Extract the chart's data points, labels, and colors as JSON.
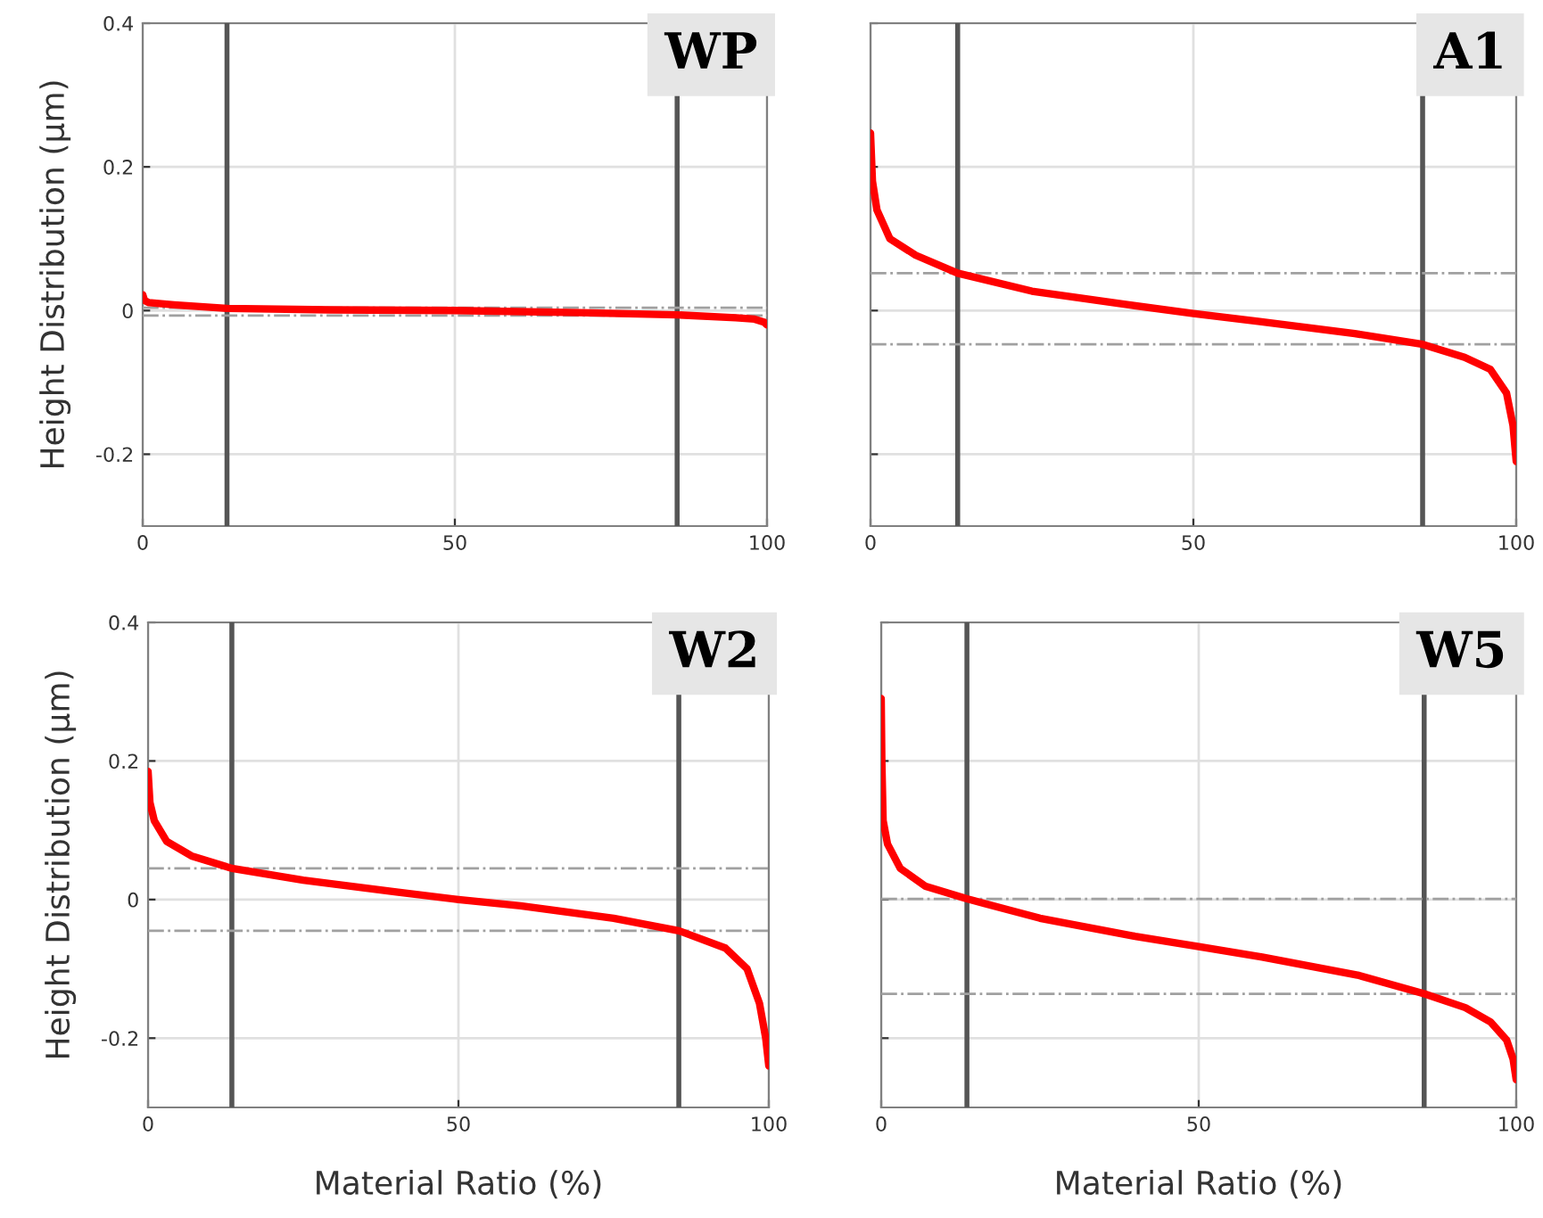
{
  "chart_data": [
    {
      "type": "line",
      "title": "WP",
      "ylabel": "Height Distribution (μm)",
      "xlim": [
        0,
        100
      ],
      "xticks": [
        0,
        50,
        100
      ],
      "ylim": [
        -0.3,
        0.4
      ],
      "yticks": [
        -0.2,
        0,
        0.2,
        0.4
      ],
      "grid": true,
      "series": [
        {
          "color": "#ff0000",
          "x": [
            0,
            0.3,
            1,
            5,
            13.5,
            30,
            50,
            70,
            85.6,
            95,
            98,
            99.5,
            100
          ],
          "values": [
            0.022,
            0.014,
            0.011,
            0.008,
            0.003,
            0.001,
            0,
            -0.003,
            -0.006,
            -0.01,
            -0.012,
            -0.016,
            -0.02
          ]
        }
      ],
      "ref_lines": [
        {
          "axis": "x",
          "value": 13.5,
          "color": "#555555",
          "line_style": "solid"
        },
        {
          "axis": "x",
          "value": 85.6,
          "color": "#555555",
          "line_style": "solid"
        },
        {
          "axis": "y",
          "value": 0.004,
          "color": "#a0a0a0",
          "line_style": "dashdot"
        },
        {
          "axis": "y",
          "value": -0.007,
          "color": "#a0a0a0",
          "line_style": "dashdot"
        }
      ]
    },
    {
      "type": "line",
      "title": "A1",
      "xlim": [
        0,
        100
      ],
      "xticks": [
        0,
        50,
        100
      ],
      "ylim": [
        -0.3,
        0.4
      ],
      "yticks": [
        -0.2,
        0,
        0.2,
        0.4
      ],
      "grid": true,
      "tick_labels": "x",
      "series": [
        {
          "color": "#ff0000",
          "x": [
            0,
            0.3,
            1,
            3,
            7,
            13.5,
            25,
            40,
            50,
            60,
            75,
            85.5,
            92,
            96,
            98.5,
            99.5,
            100
          ],
          "values": [
            0.247,
            0.18,
            0.14,
            0.1,
            0.077,
            0.052,
            0.027,
            0.008,
            -0.004,
            -0.015,
            -0.032,
            -0.047,
            -0.065,
            -0.082,
            -0.115,
            -0.16,
            -0.21
          ]
        }
      ],
      "ref_lines": [
        {
          "axis": "x",
          "value": 13.5,
          "color": "#555555",
          "line_style": "solid"
        },
        {
          "axis": "x",
          "value": 85.5,
          "color": "#555555",
          "line_style": "solid"
        },
        {
          "axis": "y",
          "value": 0.052,
          "color": "#a0a0a0",
          "line_style": "dashdot"
        },
        {
          "axis": "y",
          "value": -0.047,
          "color": "#a0a0a0",
          "line_style": "dashdot"
        }
      ]
    },
    {
      "type": "line",
      "title": "W2",
      "ylabel": "Height Distribution (μm)",
      "xlabel": "Material Ratio (%)",
      "xlim": [
        0,
        100
      ],
      "xticks": [
        0,
        50,
        100
      ],
      "ylim": [
        -0.3,
        0.4
      ],
      "yticks": [
        -0.2,
        0,
        0.2,
        0.4
      ],
      "grid": true,
      "series": [
        {
          "color": "#ff0000",
          "x": [
            0,
            0.3,
            1,
            3,
            7,
            13.5,
            25,
            40,
            50,
            60,
            75,
            85.5,
            93,
            96.5,
            98.5,
            99.5,
            100
          ],
          "values": [
            0.185,
            0.14,
            0.114,
            0.084,
            0.063,
            0.045,
            0.028,
            0.011,
            0,
            -0.009,
            -0.027,
            -0.045,
            -0.07,
            -0.1,
            -0.15,
            -0.2,
            -0.24
          ]
        }
      ],
      "ref_lines": [
        {
          "axis": "x",
          "value": 13.5,
          "color": "#555555",
          "line_style": "solid"
        },
        {
          "axis": "x",
          "value": 85.5,
          "color": "#555555",
          "line_style": "solid"
        },
        {
          "axis": "y",
          "value": 0.045,
          "color": "#a0a0a0",
          "line_style": "dashdot"
        },
        {
          "axis": "y",
          "value": -0.045,
          "color": "#a0a0a0",
          "line_style": "dashdot"
        }
      ]
    },
    {
      "type": "line",
      "title": "W5",
      "xlabel": "Material Ratio (%)",
      "xlim": [
        0,
        100
      ],
      "xticks": [
        0,
        50,
        100
      ],
      "ylim": [
        -0.3,
        0.4
      ],
      "yticks": [
        -0.2,
        0,
        0.2,
        0.4
      ],
      "grid": true,
      "tick_labels": "x",
      "series": [
        {
          "color": "#ff0000",
          "x": [
            0,
            0.1,
            0.3,
            1,
            3,
            7,
            13.5,
            25,
            40,
            50,
            60,
            75,
            85.5,
            92,
            96,
            98.5,
            99.5,
            100
          ],
          "values": [
            0.29,
            0.2,
            0.114,
            0.08,
            0.045,
            0.019,
            0.001,
            -0.027,
            -0.053,
            -0.068,
            -0.083,
            -0.109,
            -0.136,
            -0.156,
            -0.177,
            -0.203,
            -0.23,
            -0.26
          ]
        }
      ],
      "ref_lines": [
        {
          "axis": "x",
          "value": 13.5,
          "color": "#555555",
          "line_style": "solid"
        },
        {
          "axis": "x",
          "value": 85.5,
          "color": "#555555",
          "line_style": "solid"
        },
        {
          "axis": "y",
          "value": 0.001,
          "color": "#a0a0a0",
          "line_style": "dashdot"
        },
        {
          "axis": "y",
          "value": -0.136,
          "color": "#a0a0a0",
          "line_style": "dashdot"
        }
      ]
    }
  ]
}
